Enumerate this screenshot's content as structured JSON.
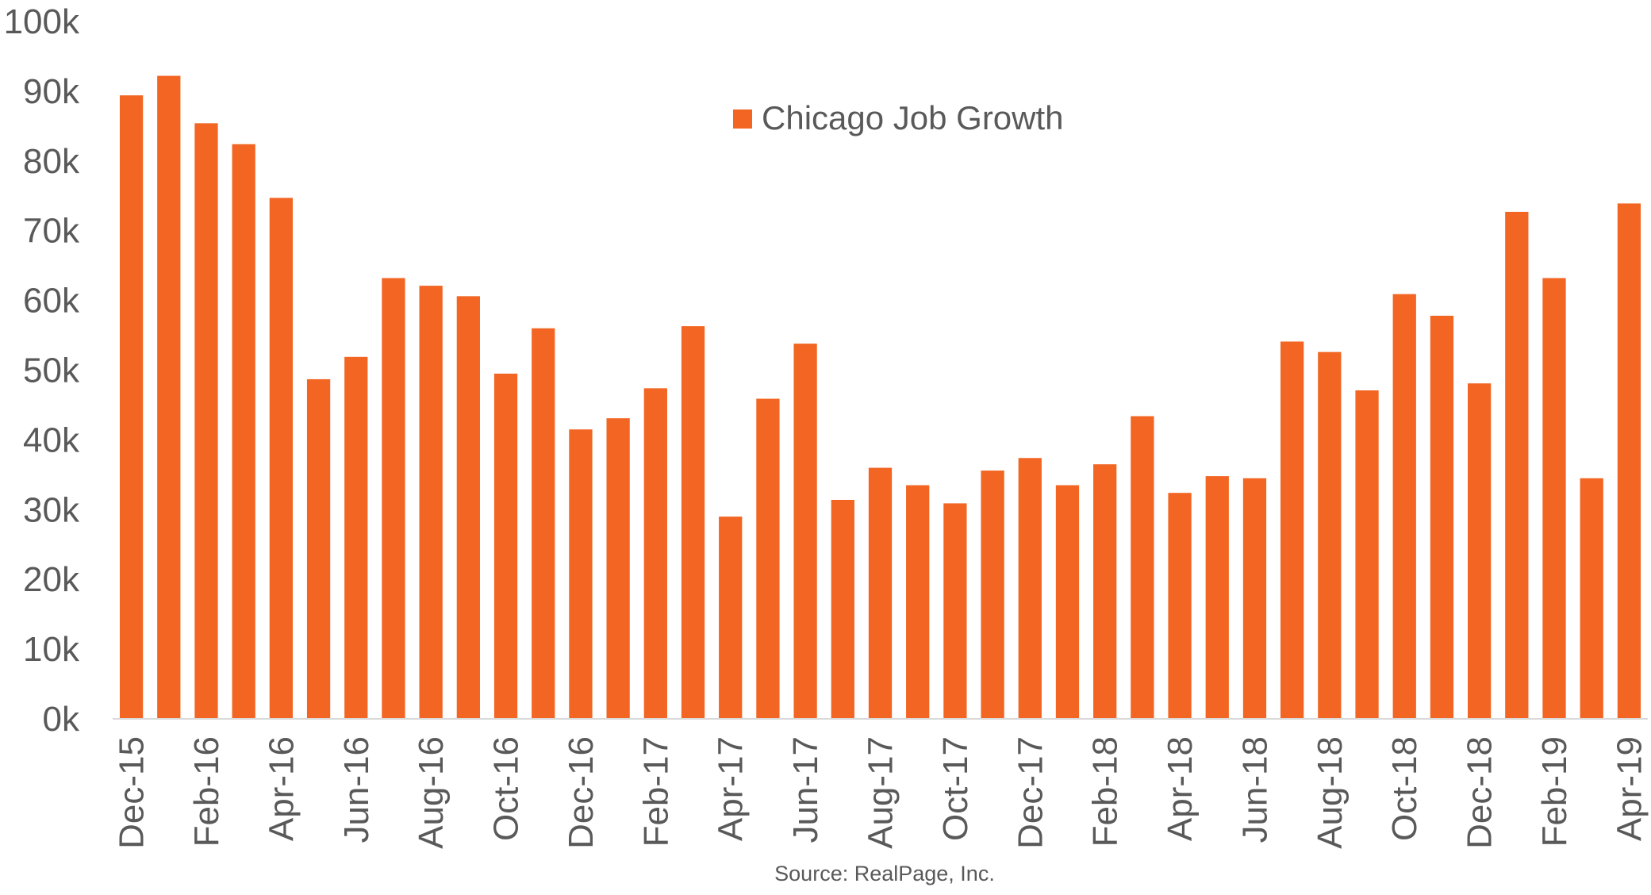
{
  "chart_data": {
    "type": "bar",
    "title": "",
    "xlabel": "",
    "ylabel": "",
    "ylim": [
      0,
      100000
    ],
    "y_ticks": [
      "0k",
      "10k",
      "20k",
      "30k",
      "40k",
      "50k",
      "60k",
      "70k",
      "80k",
      "90k",
      "100k"
    ],
    "y_tick_values": [
      0,
      10000,
      20000,
      30000,
      40000,
      50000,
      60000,
      70000,
      80000,
      90000,
      100000
    ],
    "x_tick_labels": [
      "Dec-15",
      "Feb-16",
      "Apr-16",
      "Jun-16",
      "Aug-16",
      "Oct-16",
      "Dec-16",
      "Feb-17",
      "Apr-17",
      "Jun-17",
      "Aug-17",
      "Oct-17",
      "Dec-17",
      "Feb-18",
      "Apr-18",
      "Jun-18",
      "Aug-18",
      "Oct-18",
      "Dec-18",
      "Feb-19",
      "Apr-19"
    ],
    "grid": false,
    "legend_placement": "top-center",
    "series": [
      {
        "name": "Chicago Job Growth",
        "color": "#F26522",
        "values": [
          89400,
          92200,
          85400,
          82400,
          74700,
          48700,
          51900,
          63200,
          62100,
          60600,
          49500,
          56000,
          41500,
          43100,
          47400,
          56300,
          29000,
          45900,
          53800,
          31400,
          36000,
          33500,
          30900,
          35600,
          37400,
          33500,
          36500,
          43400,
          32400,
          34800,
          34500,
          54100,
          52600,
          47100,
          60900,
          57800,
          48100,
          72700,
          63200,
          34500,
          73900
        ]
      }
    ],
    "source": "Source: RealPage, Inc."
  }
}
